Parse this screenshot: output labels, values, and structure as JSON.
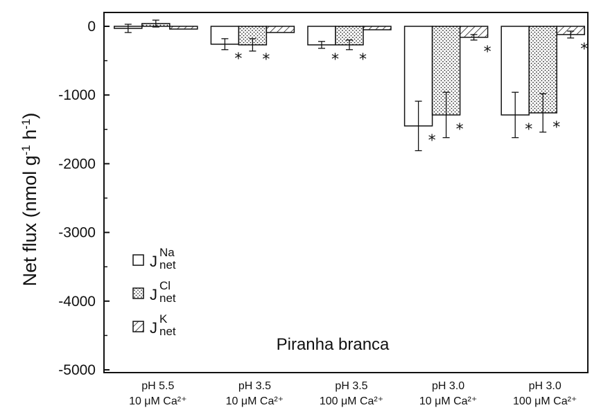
{
  "chart_data": {
    "type": "bar",
    "ylabel": "Net flux (nmol g-1 h-1)",
    "ylabel_parts": {
      "main": "Net flux (nmol g",
      "sup1": "-1",
      "mid": " h",
      "sup2": "-1",
      "end": ")"
    },
    "ylim": [
      -5000,
      200
    ],
    "yticks": [
      0,
      -1000,
      -2000,
      -3000,
      -4000,
      -5000
    ],
    "ytick_labels": [
      "0",
      "-1000",
      "-2000",
      "-3000",
      "-4000",
      "-5000"
    ],
    "grid": false,
    "legend_position": "bottom-left",
    "annotation": "Piranha branca",
    "significance_marker": "*",
    "categories": [
      {
        "line1": "pH 5.5",
        "line2": "10 μM Ca²⁺"
      },
      {
        "line1": "pH 3.5",
        "line2": "10 μM Ca²⁺"
      },
      {
        "line1": "pH 3.5",
        "line2": "100 μM Ca²⁺"
      },
      {
        "line1": "pH 3.0",
        "line2": "10 μM Ca²⁺"
      },
      {
        "line1": "pH 3.0",
        "line2": "100 μM Ca²⁺"
      }
    ],
    "series": [
      {
        "name": "J net Na",
        "label_main": "J",
        "label_sup": "Na",
        "label_sub": "net",
        "pattern": "open",
        "values": [
          -30,
          -260,
          -270,
          -1450,
          -1290
        ],
        "errors": [
          60,
          80,
          50,
          360,
          330
        ],
        "significant": [
          false,
          true,
          true,
          true,
          true
        ]
      },
      {
        "name": "J net Cl",
        "label_main": "J",
        "label_sup": "Cl",
        "label_sub": "net",
        "pattern": "dotted",
        "values": [
          40,
          -270,
          -270,
          -1290,
          -1260
        ],
        "errors": [
          50,
          90,
          70,
          330,
          280
        ],
        "significant": [
          false,
          true,
          true,
          true,
          true
        ]
      },
      {
        "name": "J net K",
        "label_main": "J",
        "label_sup": "K",
        "label_sub": "net",
        "pattern": "hatched",
        "values": [
          -40,
          -90,
          -50,
          -160,
          -120
        ],
        "errors": [
          0,
          0,
          0,
          40,
          50
        ],
        "significant": [
          false,
          false,
          false,
          true,
          true
        ]
      }
    ]
  }
}
